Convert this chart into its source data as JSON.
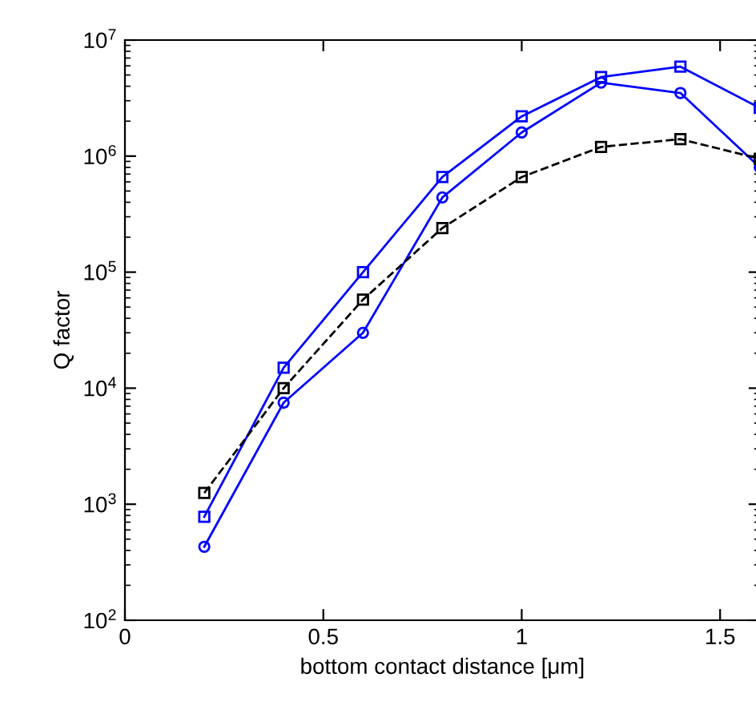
{
  "chart_data": {
    "type": "line",
    "xlabel": "bottom contact distance [μm]",
    "ylabel": "Q factor",
    "log": "y",
    "x": [
      0.2,
      0.4,
      0.6,
      0.8,
      1.0,
      1.2,
      1.4,
      1.6
    ],
    "series": [
      {
        "color": "#0000ff",
        "marker": "square",
        "line_style": "solid",
        "values": [
          780,
          15000,
          100000,
          660000,
          2200000,
          4800000,
          5900000,
          2600000
        ]
      },
      {
        "color": "#0000ff",
        "marker": "circle",
        "line_style": "solid",
        "values": [
          430,
          7500,
          30000,
          440000,
          1600000,
          4300000,
          3500000,
          800000
        ]
      },
      {
        "color": "#000000",
        "marker": "square",
        "line_style": "dashed",
        "values": [
          1250,
          10000,
          58000,
          240000,
          660000,
          1200000,
          1400000,
          950000
        ]
      }
    ],
    "xlim": [
      0,
      1.6
    ],
    "xticks": [
      0,
      0.5,
      1,
      1.5
    ],
    "ylim": [
      100,
      10000000
    ],
    "yticks": [
      {
        "value": 100,
        "label": "10$^{2}$"
      },
      {
        "value": 1000,
        "label": "10$^{3}$"
      },
      {
        "value": 10000,
        "label": "10$^{4}$"
      },
      {
        "value": 100000,
        "label": "10$^{5}$"
      },
      {
        "value": 1000000,
        "label": "10$^{6}$"
      },
      {
        "value": 10000000,
        "label": "10$^{7}$"
      }
    ],
    "grid": false,
    "legend": false
  }
}
